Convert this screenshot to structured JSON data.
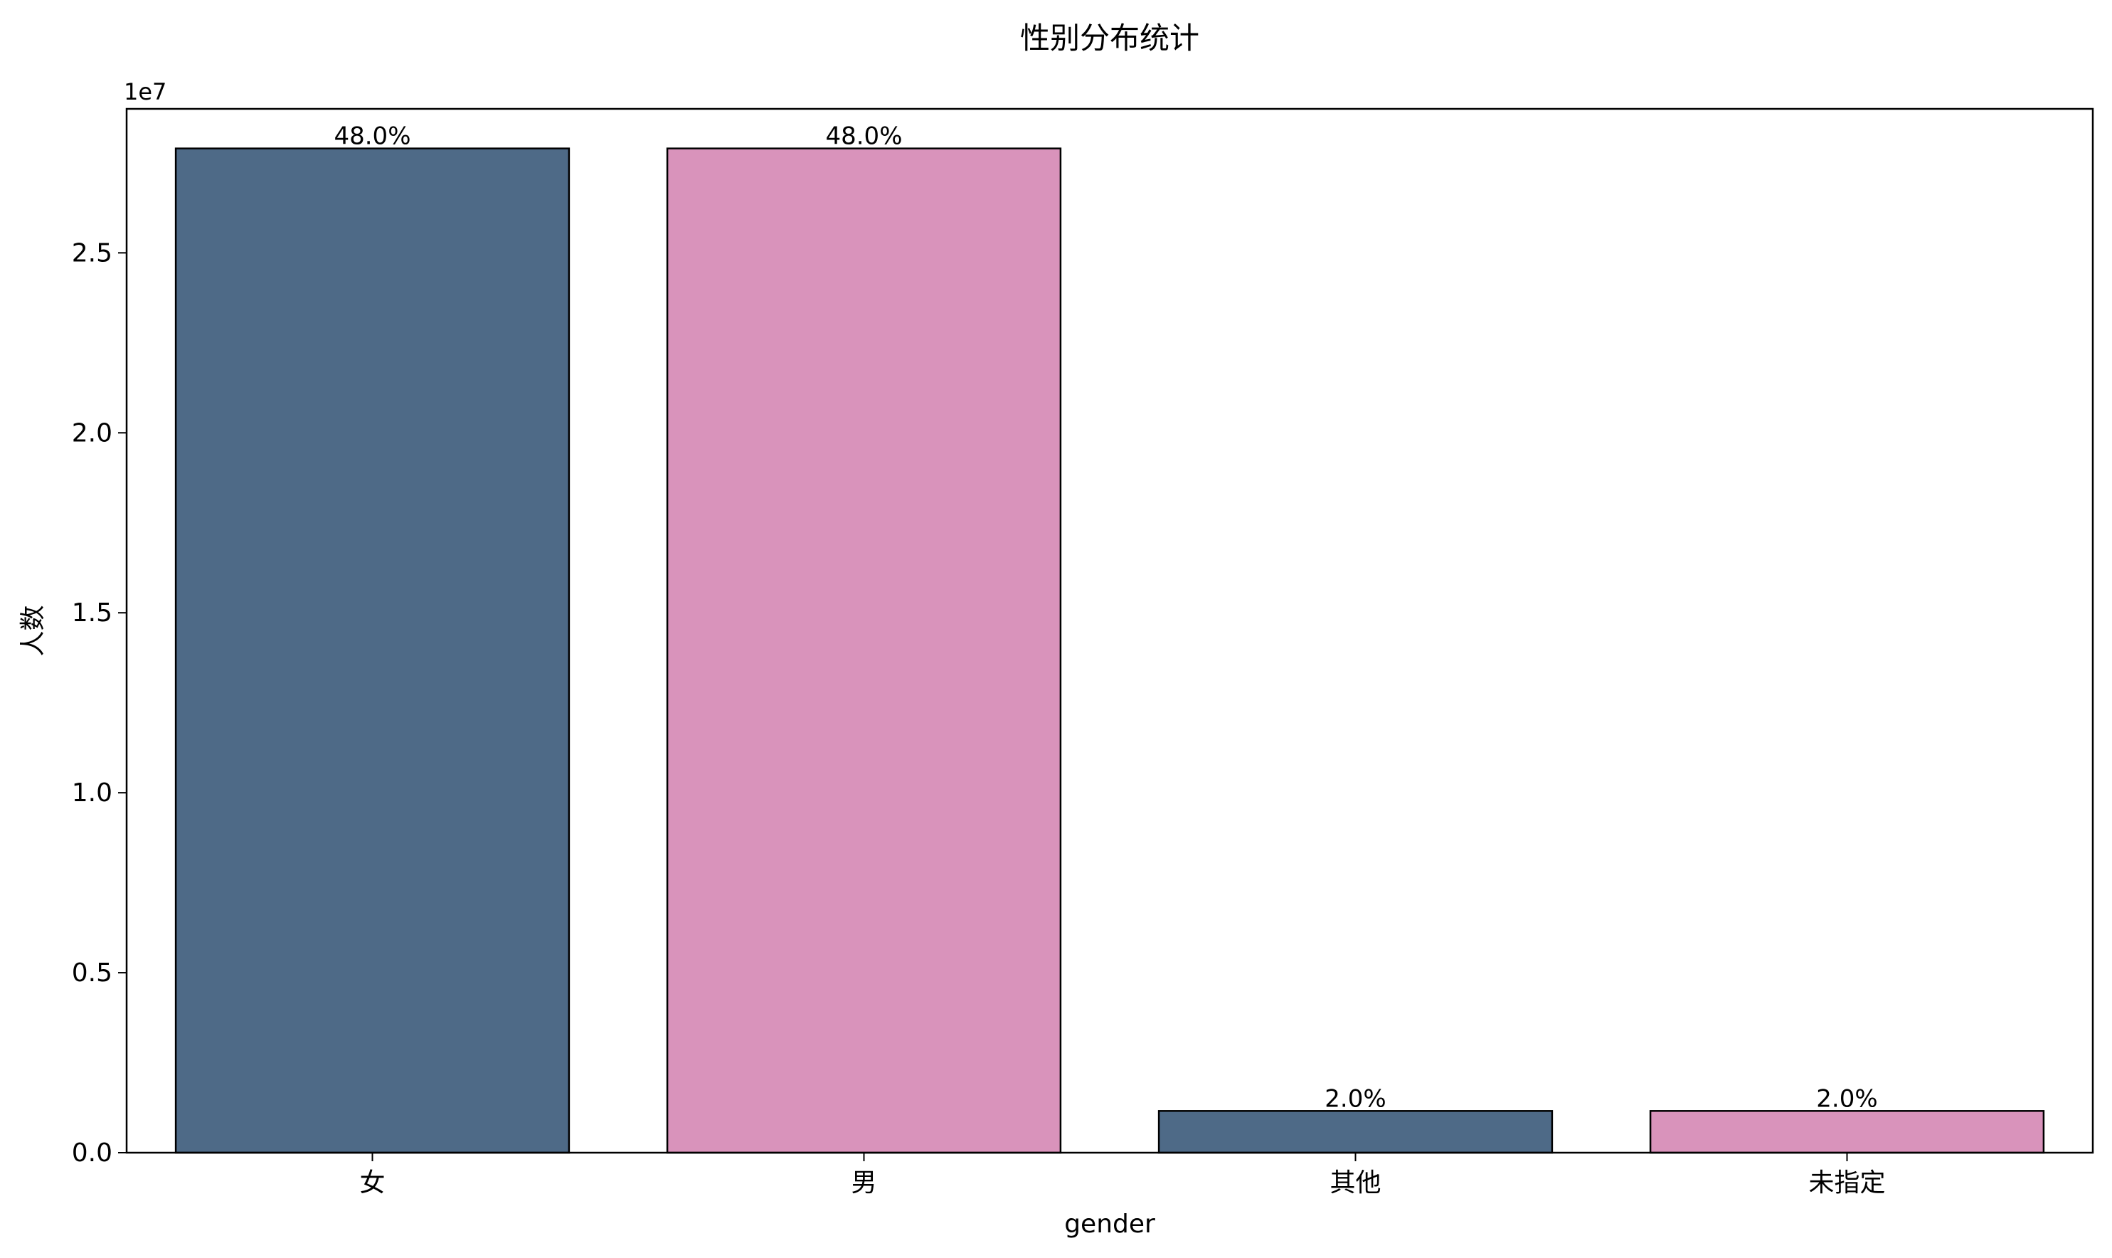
{
  "chart_data": {
    "type": "bar",
    "title": "性别分布统计",
    "xlabel": "gender",
    "ylabel": "人数",
    "categories": [
      "女",
      "男",
      "其他",
      "未指定"
    ],
    "values": [
      27900000,
      27900000,
      1160000,
      1160000
    ],
    "data_labels": [
      "48.0%",
      "48.0%",
      "2.0%",
      "2.0%"
    ],
    "bar_colors": [
      "#4e6a87",
      "#d993bb",
      "#4e6a87",
      "#d993bb"
    ],
    "bar_edge_color": "#000000",
    "ylim": [
      0,
      29000000
    ],
    "yticks": [
      0,
      5000000,
      10000000,
      15000000,
      20000000,
      25000000
    ],
    "ytick_labels": [
      "0.0",
      "0.5",
      "1.0",
      "1.5",
      "2.0",
      "2.5"
    ],
    "y_offset_label": "1e7",
    "grid": false,
    "legend": "none"
  }
}
